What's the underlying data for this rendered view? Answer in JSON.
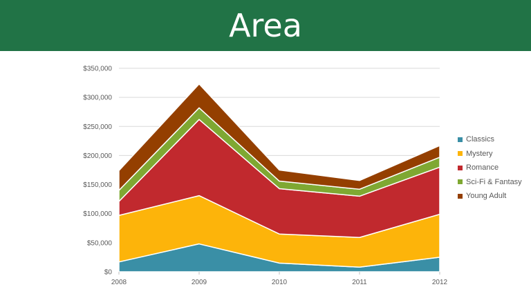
{
  "slide": {
    "title": "Area"
  },
  "chart_data": {
    "type": "area",
    "stacked": true,
    "categories": [
      "2008",
      "2009",
      "2010",
      "2011",
      "2012"
    ],
    "series": [
      {
        "name": "Classics",
        "color": "#3A8FA6",
        "values": [
          17000,
          48000,
          15000,
          8000,
          25000
        ]
      },
      {
        "name": "Mystery",
        "color": "#FDB40A",
        "values": [
          80000,
          83000,
          50000,
          51000,
          74000
        ]
      },
      {
        "name": "Romance",
        "color": "#C1292E",
        "values": [
          24000,
          131000,
          78000,
          71000,
          81000
        ]
      },
      {
        "name": "Sci-Fi & Fantasy",
        "color": "#7FA832",
        "values": [
          19000,
          20000,
          13000,
          12000,
          17000
        ]
      },
      {
        "name": "Young Adult",
        "color": "#943F00",
        "values": [
          34000,
          41000,
          19000,
          15000,
          20000
        ]
      }
    ],
    "ylim": [
      0,
      350000
    ],
    "yticks": [
      "$0",
      "$50,000",
      "$100,000",
      "$150,000",
      "$200,000",
      "$250,000",
      "$300,000",
      "$350,000"
    ],
    "grid": true,
    "legend": "right"
  }
}
